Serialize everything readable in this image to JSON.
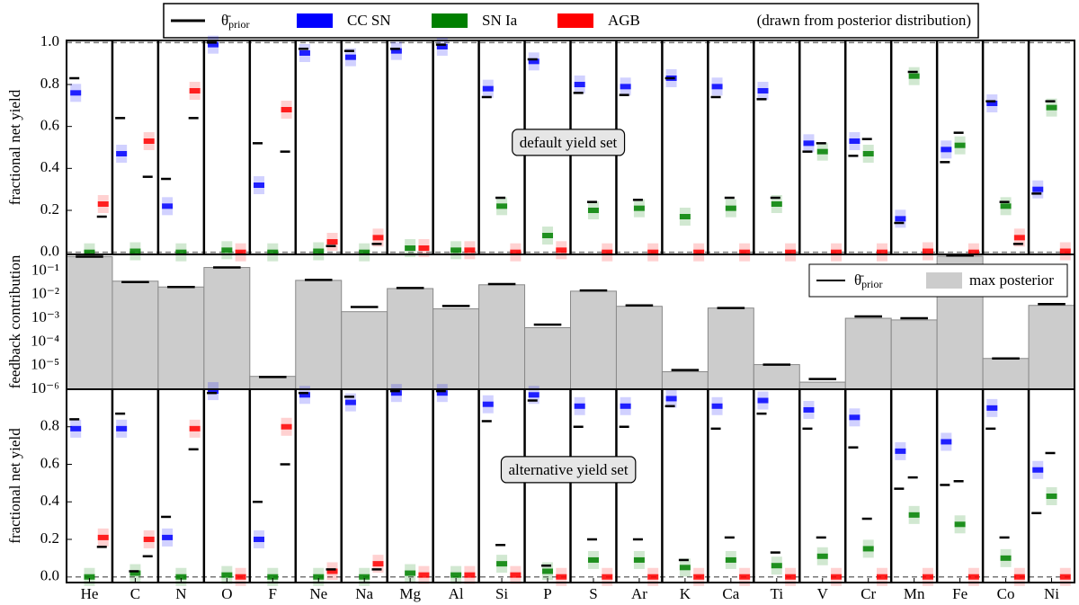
{
  "chart_data": [
    {
      "type": "yield",
      "legend": {
        "prior_symbol": "θ̄",
        "prior_subscript": "prior",
        "note": "(drawn from posterior distribution)"
      },
      "annotation": "default yield set",
      "y_label": "fractional net yield",
      "ylim": [
        -0.01,
        1.01
      ],
      "yticks": [
        {
          "value": 0,
          "label": "0.0"
        },
        {
          "value": 0.2,
          "label": "0.2"
        },
        {
          "value": 0.4,
          "label": "0.4"
        },
        {
          "value": 0.6,
          "label": "0.6"
        },
        {
          "value": 0.8,
          "label": "0.8"
        },
        {
          "value": 1.0,
          "label": "1.0"
        }
      ],
      "series": [
        {
          "name": "CC SN",
          "color": "#0000ff",
          "values": [
            0.76,
            0.47,
            0.22,
            0.99,
            0.32,
            0.95,
            0.93,
            0.96,
            0.98,
            0.78,
            0.91,
            0.8,
            0.79,
            0.83,
            0.79,
            0.77,
            0.52,
            0.53,
            0.16,
            0.49,
            0.71,
            0.3
          ],
          "prior": [
            0.83,
            0.64,
            0.35,
            1.0,
            0.52,
            0.97,
            0.96,
            0.97,
            0.99,
            0.74,
            0.92,
            0.76,
            0.75,
            0.83,
            0.74,
            0.73,
            0.48,
            0.46,
            0.14,
            0.43,
            0.72,
            0.28
          ]
        },
        {
          "name": "SN Ia",
          "color": "#008000",
          "values": [
            0.0,
            0.005,
            0.0,
            0.01,
            0.0,
            0.005,
            0.0,
            0.02,
            0.01,
            0.22,
            0.08,
            0.2,
            0.21,
            0.17,
            0.21,
            0.23,
            0.48,
            0.47,
            0.84,
            0.51,
            0.22,
            0.69
          ],
          "prior": [
            null,
            null,
            null,
            null,
            null,
            null,
            null,
            null,
            null,
            0.26,
            null,
            0.24,
            0.25,
            null,
            0.26,
            0.26,
            0.52,
            0.54,
            0.86,
            0.57,
            0.24,
            0.72
          ]
        },
        {
          "name": "AGB",
          "color": "#ff0000",
          "values": [
            0.23,
            0.53,
            0.77,
            0.0,
            0.68,
            0.05,
            0.07,
            0.02,
            0.01,
            0.0,
            0.01,
            0.0,
            0.0,
            0.0,
            0.0,
            0.0,
            0.0,
            0.0,
            0.005,
            0.0,
            0.07,
            0.005
          ],
          "prior": [
            0.17,
            0.36,
            0.64,
            null,
            0.48,
            0.03,
            0.04,
            null,
            null,
            null,
            null,
            null,
            null,
            null,
            null,
            null,
            null,
            null,
            null,
            null,
            0.04,
            null
          ]
        }
      ]
    },
    {
      "type": "bar",
      "y_label": "feedback contribution",
      "log_scale": true,
      "ylim": [
        1e-06,
        0.5
      ],
      "yticks": [
        {
          "value": 0.1,
          "label": "10⁻¹"
        },
        {
          "value": 0.01,
          "label": "10⁻²"
        },
        {
          "value": 0.001,
          "label": "10⁻³"
        },
        {
          "value": 0.0001,
          "label": "10⁻⁴"
        },
        {
          "value": 1e-05,
          "label": "10⁻⁵"
        },
        {
          "value": 1e-06,
          "label": "10⁻⁶"
        }
      ],
      "legend": {
        "corner": "upper right",
        "prior_symbol": "θ̄",
        "prior_subscript": "prior",
        "bar_name": "max posterior"
      },
      "color": "#cccccc",
      "values": [
        0.4,
        0.037,
        0.021,
        0.14,
        3.5e-06,
        0.04,
        0.0019,
        0.018,
        0.0025,
        0.026,
        0.0004,
        0.014,
        0.0032,
        5.5e-06,
        0.0027,
        1.1e-05,
        2e-06,
        0.001,
        0.00085,
        0.42,
        2e-05,
        0.0035
      ],
      "prior": [
        0.4,
        0.034,
        0.021,
        0.14,
        3.3e-06,
        0.042,
        0.003,
        0.019,
        0.0033,
        0.028,
        0.00054,
        0.015,
        0.0035,
        6.5e-06,
        0.0027,
        1.1e-05,
        2.7e-06,
        0.0012,
        0.001,
        0.45,
        2e-05,
        0.004
      ]
    },
    {
      "type": "yield",
      "annotation": "alternative yield set",
      "y_label": "fractional net yield",
      "ylim": [
        -0.03,
        1.0
      ],
      "yticks": [
        {
          "value": 0,
          "label": "0.0"
        },
        {
          "value": 0.2,
          "label": "0.2"
        },
        {
          "value": 0.4,
          "label": "0.4"
        },
        {
          "value": 0.6,
          "label": "0.6"
        },
        {
          "value": 0.8,
          "label": "0.8"
        }
      ],
      "categories": [
        "He",
        "C",
        "N",
        "O",
        "F",
        "Ne",
        "Na",
        "Mg",
        "Al",
        "Si",
        "P",
        "S",
        "Ar",
        "K",
        "Ca",
        "Ti",
        "V",
        "Cr",
        "Mn",
        "Fe",
        "Co",
        "Ni"
      ],
      "series": [
        {
          "color": "#0000ff",
          "values": [
            0.79,
            0.79,
            0.21,
            0.99,
            0.2,
            0.97,
            0.93,
            0.98,
            0.98,
            0.92,
            0.97,
            0.91,
            0.91,
            0.95,
            0.91,
            0.94,
            0.89,
            0.85,
            0.67,
            0.72,
            0.9,
            0.57
          ],
          "prior": [
            0.84,
            0.87,
            0.32,
            0.98,
            0.4,
            0.98,
            0.96,
            0.99,
            0.99,
            0.83,
            0.94,
            0.8,
            0.8,
            0.91,
            0.79,
            0.87,
            0.79,
            0.69,
            0.47,
            0.49,
            0.79,
            0.34
          ]
        },
        {
          "color": "#008000",
          "values": [
            0.0,
            0.02,
            0.0,
            0.01,
            0.0,
            0.0,
            0.0,
            0.02,
            0.01,
            0.07,
            0.03,
            0.09,
            0.09,
            0.05,
            0.09,
            0.06,
            0.11,
            0.15,
            0.33,
            0.28,
            0.1,
            0.43
          ],
          "prior": [
            null,
            0.03,
            null,
            null,
            null,
            null,
            null,
            null,
            null,
            0.17,
            0.06,
            0.2,
            0.2,
            0.09,
            0.21,
            0.13,
            0.21,
            0.31,
            0.53,
            0.51,
            0.21,
            0.66
          ]
        },
        {
          "color": "#ff0000",
          "values": [
            0.21,
            0.2,
            0.79,
            0.0,
            0.8,
            0.03,
            0.07,
            0.01,
            0.01,
            0.01,
            0.0,
            0.0,
            0.0,
            0.0,
            0.0,
            0.0,
            0.0,
            0.0,
            0.0,
            0.0,
            0.0,
            0.0
          ],
          "prior": [
            0.16,
            0.11,
            0.68,
            null,
            0.6,
            0.04,
            0.04,
            null,
            null,
            null,
            null,
            null,
            null,
            null,
            null,
            null,
            null,
            null,
            null,
            null,
            null,
            null
          ]
        }
      ]
    }
  ]
}
